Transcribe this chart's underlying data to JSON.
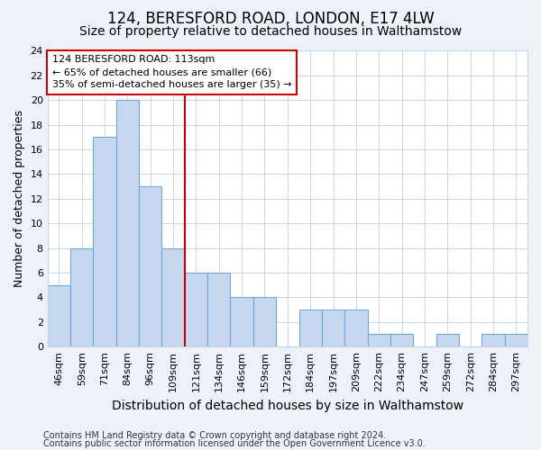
{
  "title1": "124, BERESFORD ROAD, LONDON, E17 4LW",
  "title2": "Size of property relative to detached houses in Walthamstow",
  "xlabel": "Distribution of detached houses by size in Walthamstow",
  "ylabel": "Number of detached properties",
  "categories": [
    "46sqm",
    "59sqm",
    "71sqm",
    "84sqm",
    "96sqm",
    "109sqm",
    "121sqm",
    "134sqm",
    "146sqm",
    "159sqm",
    "172sqm",
    "184sqm",
    "197sqm",
    "209sqm",
    "222sqm",
    "234sqm",
    "247sqm",
    "259sqm",
    "272sqm",
    "284sqm",
    "297sqm"
  ],
  "values": [
    5,
    8,
    17,
    20,
    13,
    8,
    6,
    6,
    4,
    4,
    0,
    3,
    3,
    3,
    1,
    1,
    0,
    1,
    0,
    1,
    1
  ],
  "bar_color": "#c5d8f0",
  "bar_edge_color": "#6aaad4",
  "vline_x": 5.5,
  "vline_color": "#cc0000",
  "annotation_line1": "124 BERESFORD ROAD: 113sqm",
  "annotation_line2": "← 65% of detached houses are smaller (66)",
  "annotation_line3": "35% of semi-detached houses are larger (35) →",
  "annotation_box_color": "#ffffff",
  "annotation_box_edge_color": "#cc0000",
  "ylim": [
    0,
    24
  ],
  "yticks": [
    0,
    2,
    4,
    6,
    8,
    10,
    12,
    14,
    16,
    18,
    20,
    22,
    24
  ],
  "footer1": "Contains HM Land Registry data © Crown copyright and database right 2024.",
  "footer2": "Contains public sector information licensed under the Open Government Licence v3.0.",
  "bg_color": "#eef2f8",
  "plot_bg_color": "#ffffff",
  "grid_color": "#c8d4e8",
  "title1_fontsize": 12,
  "title2_fontsize": 10,
  "xlabel_fontsize": 10,
  "ylabel_fontsize": 9,
  "tick_fontsize": 8,
  "footer_fontsize": 7
}
